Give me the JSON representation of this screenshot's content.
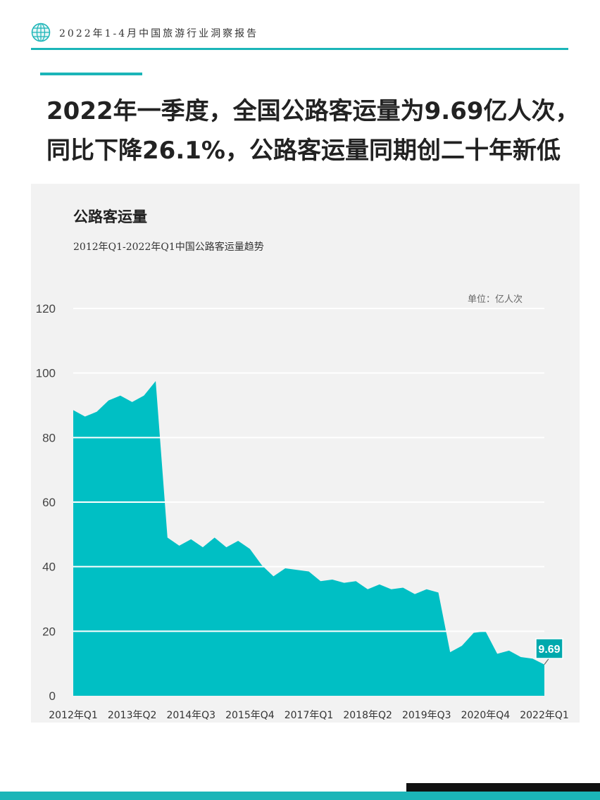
{
  "header": {
    "title": "2022年1-4月中国旅游行业洞察报告",
    "icon": "globe-icon",
    "accent_color": "#1bb5b8"
  },
  "headline": {
    "line1": "2022年一季度，全国公路客运量为9.69亿人次，",
    "line2": "同比下降26.1%，公路客运量同期创二十年新低"
  },
  "chart_data": {
    "type": "area",
    "title": "公路客运量",
    "subtitle": "2012年Q1-2022年Q1中国公路客运量趋势",
    "unit_label": "单位：亿人次",
    "ylim": [
      0,
      120
    ],
    "yticks": [
      0,
      20,
      40,
      60,
      80,
      100,
      120
    ],
    "grid": true,
    "color": "#00bfc4",
    "x_tick_labels": [
      "2012年Q1",
      "2013年Q2",
      "2014年Q3",
      "2015年Q4",
      "2017年Q1",
      "2018年Q2",
      "2019年Q3",
      "2020年Q4",
      "2022年Q1"
    ],
    "x": [
      "2012年Q1",
      "2012年Q2",
      "2012年Q3",
      "2012年Q4",
      "2013年Q1",
      "2013年Q2",
      "2013年Q3",
      "2013年Q4",
      "2014年Q1",
      "2014年Q2",
      "2014年Q3",
      "2014年Q4",
      "2015年Q1",
      "2015年Q2",
      "2015年Q3",
      "2015年Q4",
      "2016年Q1",
      "2016年Q2",
      "2016年Q3",
      "2016年Q4",
      "2017年Q1",
      "2017年Q2",
      "2017年Q3",
      "2017年Q4",
      "2018年Q1",
      "2018年Q2",
      "2018年Q3",
      "2018年Q4",
      "2019年Q1",
      "2019年Q2",
      "2019年Q3",
      "2019年Q4",
      "2020年Q1",
      "2020年Q2",
      "2020年Q3",
      "2020年Q4",
      "2021年Q1",
      "2021年Q2",
      "2021年Q3",
      "2021年Q4",
      "2022年Q1"
    ],
    "values": [
      88.5,
      86.5,
      88.0,
      91.5,
      93.0,
      91.0,
      93.0,
      97.5,
      49.0,
      46.5,
      48.5,
      46.0,
      49.0,
      46.0,
      48.0,
      45.5,
      40.5,
      37.0,
      39.5,
      39.0,
      38.5,
      35.5,
      36.0,
      35.0,
      35.5,
      33.0,
      34.5,
      33.0,
      33.5,
      31.5,
      33.0,
      32.0,
      13.5,
      15.5,
      19.5,
      20.0,
      13.0,
      14.0,
      12.0,
      11.5,
      9.69
    ],
    "annotation": {
      "label": "9.69",
      "point": "2022年Q1",
      "value": 9.69
    }
  }
}
